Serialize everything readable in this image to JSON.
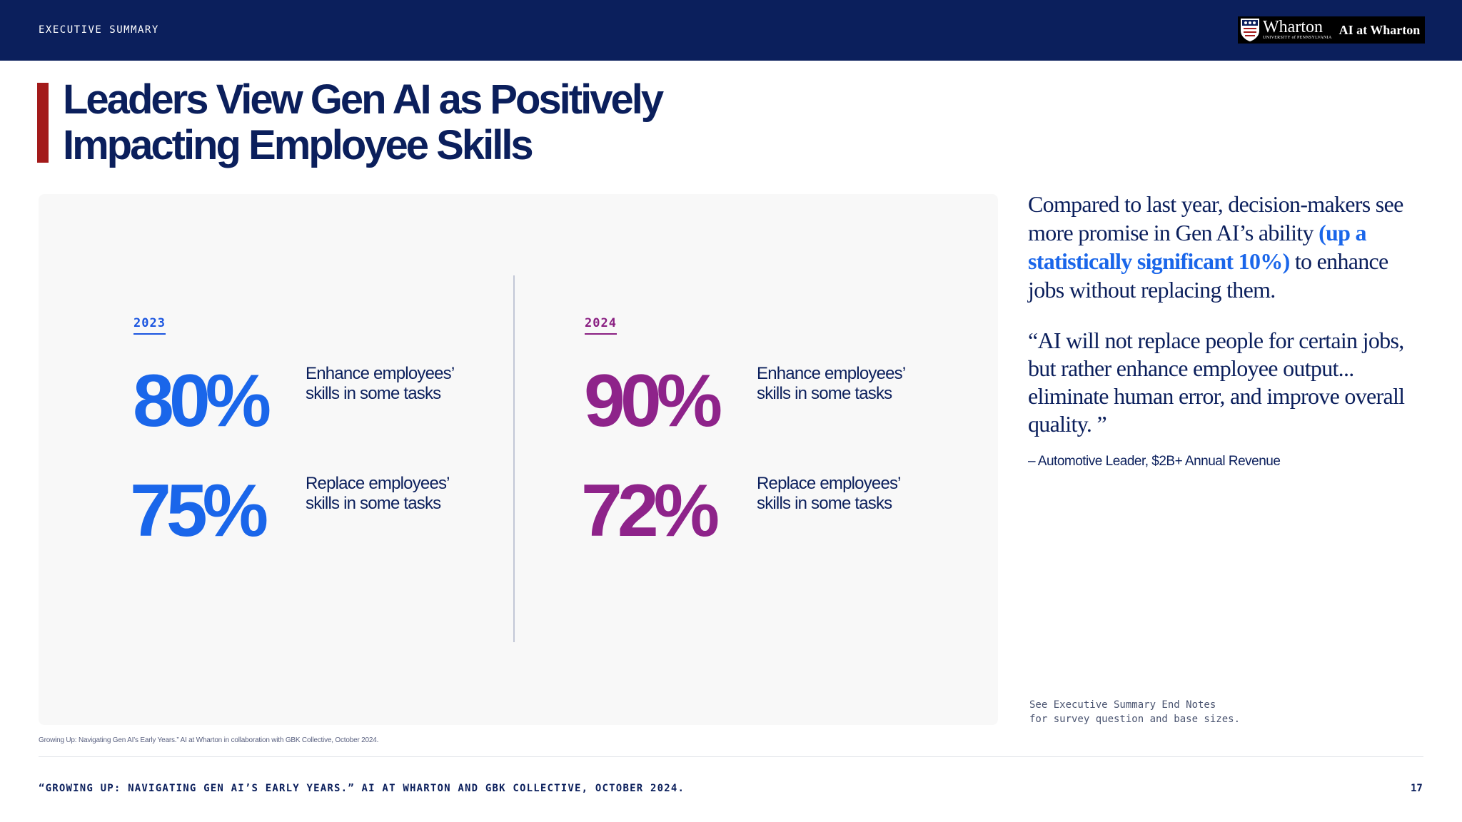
{
  "header": {
    "section_label": "EXECUTIVE SUMMARY",
    "logo": {
      "icon": "penn-shield-icon",
      "main": "Wharton",
      "sub": "UNIVERSITY of PENNSYLVANIA",
      "tag": "AI at Wharton"
    }
  },
  "title": {
    "line1": "Leaders View Gen AI as Positively",
    "line2": "Impacting Employee Skills"
  },
  "stats": {
    "y2023": {
      "year": "2023",
      "enhance_value": "80%",
      "enhance_label": "Enhance employees’ skills in some tasks",
      "replace_value": "75%",
      "replace_label": "Replace employees’ skills in some tasks"
    },
    "y2024": {
      "year": "2024",
      "enhance_value": "90%",
      "enhance_label": "Enhance employees’ skills in some tasks",
      "replace_value": "72%",
      "replace_label": "Replace employees’ skills in some tasks"
    }
  },
  "sidebar": {
    "headline_pre": "Compared to last year, decision-makers see more promise in Gen AI’s ability ",
    "headline_highlight": "(up a statistically significant 10%)",
    "headline_post": " to enhance jobs without replacing them.",
    "quote": "“AI will not replace people for certain jobs, but rather enhance employee output... eliminate human error, and improve overall quality. ”",
    "attribution": "– Automotive Leader, $2B+ Annual Revenue",
    "endnote": "See Executive Summary End Notes\nfor survey question and base sizes."
  },
  "footer": {
    "source_small": "Growing Up: Navigating Gen AI’s Early Years.” AI at Wharton in collaboration with GBK Collective, October 2024.",
    "source": "“GROWING UP: NAVIGATING GEN AI’S EARLY YEARS.” AI AT WHARTON AND GBK COLLECTIVE, OCTOBER 2024.",
    "page_number": "17"
  },
  "colors": {
    "navy": "#0b1f5c",
    "accent_red": "#a31a1a",
    "blue_2023": "#1a66ea",
    "purple_2024": "#8e238a"
  }
}
